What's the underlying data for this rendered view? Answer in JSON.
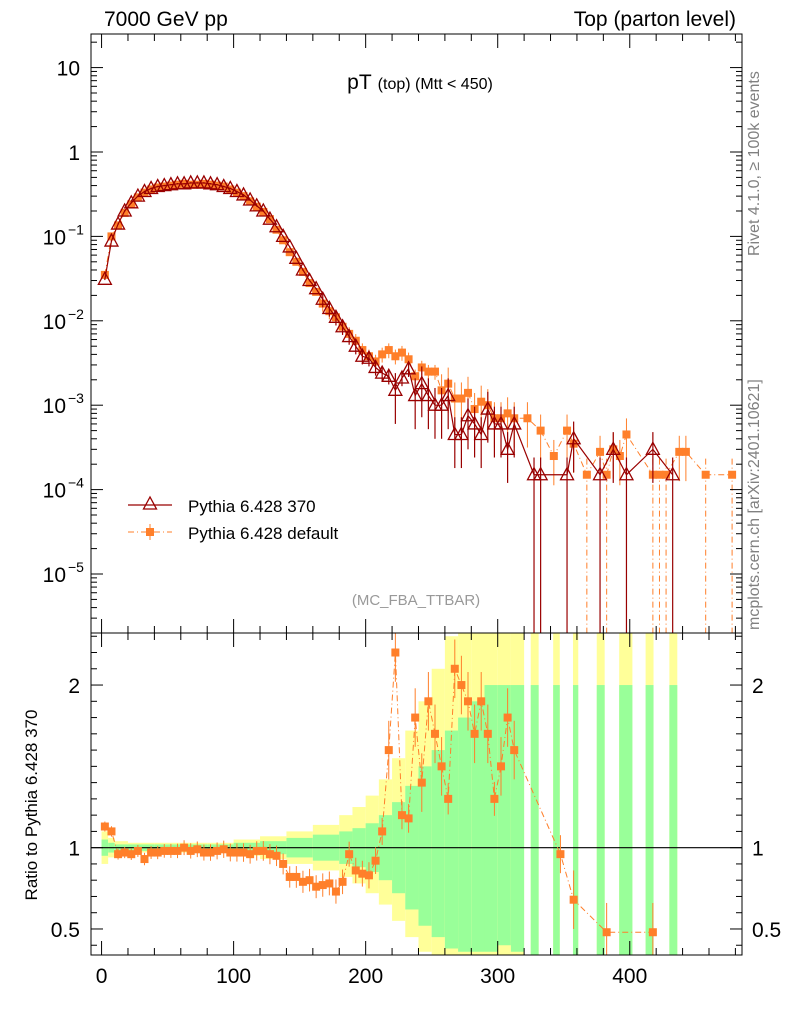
{
  "header": {
    "left": "7000 GeV pp",
    "right": "Top (parton level)"
  },
  "side_text": {
    "upper": "Rivet 4.1.0, ≥ 100k events",
    "lower": "mcplots.cern.ch [arXiv:2401.10621]"
  },
  "chart_data": {
    "type": "scatter",
    "title": "pT (top) (Mtt < 450)",
    "title_main": "pT",
    "title_sub": "(top) (Mtt < 450)",
    "analysis_label": "(MC_FBA_TTBAR)",
    "x_ticks": [
      "0",
      "100",
      "200",
      "300",
      "400"
    ],
    "x_range": [
      -8,
      485
    ],
    "y_scale": "log",
    "y_range": [
      2e-06,
      25
    ],
    "y_tick_labels": [
      {
        "value": 10,
        "label": "10"
      },
      {
        "value": 1,
        "label": "1"
      },
      {
        "value": 0.1,
        "label": "10",
        "exp": "−1"
      },
      {
        "value": 0.01,
        "label": "10",
        "exp": "−2"
      },
      {
        "value": 0.001,
        "label": "10",
        "exp": "−3"
      },
      {
        "value": 0.0001,
        "label": "10",
        "exp": "−4"
      },
      {
        "value": 1e-05,
        "label": "10",
        "exp": "−5"
      }
    ],
    "ratio_ylabel": "Ratio to Pythia 6.428 370",
    "ratio_range": [
      0.34,
      2.32
    ],
    "ratio_ticks": [
      {
        "value": 0.5,
        "label": "0.5"
      },
      {
        "value": 1,
        "label": "1"
      },
      {
        "value": 2,
        "label": "2"
      }
    ],
    "legend": [
      {
        "label": "Pythia 6.428 370",
        "color": "#990000",
        "marker": "triangle",
        "line": "solid"
      },
      {
        "label": "Pythia 6.428 default",
        "color": "#ff7f2a",
        "marker": "square",
        "line": "dashdot"
      }
    ],
    "series": [
      {
        "name": "Pythia 6.428 370",
        "color": "#990000",
        "x": [
          2.5,
          7.5,
          12.5,
          17.5,
          22.5,
          27.5,
          32.5,
          37.5,
          42.5,
          47.5,
          52.5,
          57.5,
          62.5,
          67.5,
          72.5,
          77.5,
          82.5,
          87.5,
          92.5,
          97.5,
          102.5,
          107.5,
          112.5,
          117.5,
          122.5,
          127.5,
          132.5,
          137.5,
          142.5,
          147.5,
          152.5,
          157.5,
          162.5,
          167.5,
          172.5,
          177.5,
          182.5,
          187.5,
          192.5,
          197.5,
          202.5,
          207.5,
          212.5,
          217.5,
          222.5,
          227.5,
          232.5,
          237.5,
          242.5,
          247.5,
          252.5,
          257.5,
          262.5,
          267.5,
          272.5,
          277.5,
          282.5,
          287.5,
          292.5,
          297.5,
          302.5,
          307.5,
          312.5,
          327.5,
          332.5,
          352.5,
          357.5,
          377.5,
          387.5,
          397.5,
          417.5,
          432.5
        ],
        "y": [
          0.031,
          0.088,
          0.14,
          0.2,
          0.25,
          0.3,
          0.34,
          0.37,
          0.39,
          0.4,
          0.41,
          0.42,
          0.42,
          0.43,
          0.43,
          0.43,
          0.42,
          0.41,
          0.39,
          0.37,
          0.34,
          0.31,
          0.27,
          0.23,
          0.2,
          0.16,
          0.13,
          0.1,
          0.075,
          0.055,
          0.04,
          0.03,
          0.024,
          0.018,
          0.014,
          0.011,
          0.0085,
          0.0065,
          0.005,
          0.0038,
          0.0036,
          0.0028,
          0.0024,
          0.0022,
          0.0015,
          0.0021,
          0.0027,
          0.0013,
          0.0018,
          0.0013,
          0.001,
          0.001,
          0.0013,
          0.00045,
          0.00045,
          0.00075,
          0.0006,
          0.00045,
          0.0009,
          0.0006,
          0.0006,
          0.0003,
          0.0006,
          0.00015,
          0.00015,
          0.00015,
          0.0004,
          0.00015,
          0.0003,
          0.00015,
          0.0003,
          0.00015
        ]
      },
      {
        "name": "Pythia 6.428 default",
        "color": "#ff7f2a",
        "x": [
          2.5,
          7.5,
          12.5,
          17.5,
          22.5,
          27.5,
          32.5,
          37.5,
          42.5,
          47.5,
          52.5,
          57.5,
          62.5,
          67.5,
          72.5,
          77.5,
          82.5,
          87.5,
          92.5,
          97.5,
          102.5,
          107.5,
          112.5,
          117.5,
          122.5,
          127.5,
          132.5,
          137.5,
          142.5,
          147.5,
          152.5,
          157.5,
          162.5,
          167.5,
          172.5,
          177.5,
          182.5,
          187.5,
          192.5,
          197.5,
          202.5,
          207.5,
          212.5,
          217.5,
          222.5,
          227.5,
          232.5,
          237.5,
          242.5,
          247.5,
          252.5,
          257.5,
          262.5,
          267.5,
          272.5,
          277.5,
          282.5,
          287.5,
          292.5,
          297.5,
          302.5,
          307.5,
          312.5,
          322.5,
          332.5,
          342.5,
          352.5,
          357.5,
          367.5,
          377.5,
          382.5,
          387.5,
          392.5,
          397.5,
          417.5,
          422.5,
          427.5,
          437.5,
          442.5,
          457.5,
          477.5
        ],
        "y": [
          0.035,
          0.1,
          0.135,
          0.19,
          0.24,
          0.29,
          0.33,
          0.36,
          0.38,
          0.39,
          0.4,
          0.41,
          0.42,
          0.41,
          0.41,
          0.42,
          0.41,
          0.4,
          0.39,
          0.36,
          0.33,
          0.3,
          0.26,
          0.225,
          0.195,
          0.16,
          0.12,
          0.09,
          0.065,
          0.05,
          0.038,
          0.028,
          0.022,
          0.016,
          0.013,
          0.011,
          0.0085,
          0.007,
          0.0058,
          0.0045,
          0.0038,
          0.0033,
          0.004,
          0.0045,
          0.0038,
          0.0042,
          0.0035,
          0.0022,
          0.0028,
          0.0025,
          0.0025,
          0.0015,
          0.0018,
          0.0012,
          0.0012,
          0.0014,
          0.0009,
          0.0011,
          0.001,
          0.0007,
          0.0007,
          0.0008,
          0.0007,
          0.0007,
          0.0005,
          0.00025,
          0.0005,
          0.00035,
          0.00015,
          0.00028,
          0.00015,
          0.0003,
          0.00025,
          0.00045,
          0.00015,
          0.00015,
          0.00015,
          0.00028,
          0.00028,
          0.00015,
          0.00015
        ]
      }
    ],
    "ratio_points_default": [
      [
        2.5,
        1.13
      ],
      [
        7.5,
        1.1
      ],
      [
        12.5,
        0.96
      ],
      [
        17.5,
        0.97
      ],
      [
        22.5,
        0.96
      ],
      [
        27.5,
        0.98
      ],
      [
        32.5,
        0.93
      ],
      [
        37.5,
        0.97
      ],
      [
        42.5,
        0.97
      ],
      [
        47.5,
        0.98
      ],
      [
        52.5,
        0.98
      ],
      [
        57.5,
        0.98
      ],
      [
        62.5,
        1.0
      ],
      [
        67.5,
        0.98
      ],
      [
        72.5,
        0.99
      ],
      [
        77.5,
        0.97
      ],
      [
        82.5,
        0.97
      ],
      [
        87.5,
        0.98
      ],
      [
        92.5,
        0.99
      ],
      [
        97.5,
        0.97
      ],
      [
        102.5,
        0.97
      ],
      [
        107.5,
        0.97
      ],
      [
        112.5,
        0.96
      ],
      [
        117.5,
        0.98
      ],
      [
        122.5,
        0.98
      ],
      [
        127.5,
        0.96
      ],
      [
        132.5,
        0.95
      ],
      [
        137.5,
        0.9
      ],
      [
        142.5,
        0.82
      ],
      [
        147.5,
        0.82
      ],
      [
        152.5,
        0.79
      ],
      [
        157.5,
        0.8
      ],
      [
        162.5,
        0.76
      ],
      [
        167.5,
        0.77
      ],
      [
        172.5,
        0.78
      ],
      [
        177.5,
        0.73
      ],
      [
        182.5,
        0.79
      ],
      [
        187.5,
        0.96
      ],
      [
        192.5,
        0.86
      ],
      [
        197.5,
        0.84
      ],
      [
        202.5,
        0.83
      ],
      [
        207.5,
        0.92
      ],
      [
        212.5,
        1.1
      ],
      [
        217.5,
        1.6
      ],
      [
        222.5,
        2.2
      ],
      [
        227.5,
        1.2
      ],
      [
        232.5,
        1.18
      ],
      [
        237.5,
        1.8
      ],
      [
        242.5,
        1.4
      ],
      [
        247.5,
        1.9
      ],
      [
        252.5,
        1.7
      ],
      [
        257.5,
        1.5
      ],
      [
        262.5,
        1.3
      ],
      [
        267.5,
        2.1
      ],
      [
        272.5,
        2.0
      ],
      [
        277.5,
        1.9
      ],
      [
        282.5,
        1.7
      ],
      [
        287.5,
        1.9
      ],
      [
        292.5,
        1.7
      ],
      [
        297.5,
        1.3
      ],
      [
        302.5,
        1.5
      ],
      [
        307.5,
        1.8
      ],
      [
        312.5,
        1.6
      ],
      [
        347.5,
        0.96
      ],
      [
        357.5,
        0.68
      ],
      [
        382.5,
        0.48
      ],
      [
        417.5,
        0.48
      ]
    ],
    "ratio_band_edges": {
      "x": [
        0,
        5,
        10,
        20,
        40,
        60,
        80,
        100,
        120,
        140,
        160,
        180,
        190,
        200,
        210,
        220,
        230,
        240,
        250,
        260,
        270,
        280,
        290,
        300,
        310,
        320
      ],
      "green_lo": [
        0.95,
        0.97,
        0.98,
        0.98,
        0.98,
        0.98,
        0.98,
        0.97,
        0.96,
        0.94,
        0.92,
        0.9,
        0.88,
        0.85,
        0.8,
        0.72,
        0.62,
        0.52,
        0.45,
        0.38,
        0.36,
        0.36,
        0.36,
        0.4,
        0.36
      ],
      "green_hi": [
        1.05,
        1.03,
        1.02,
        1.02,
        1.02,
        1.02,
        1.02,
        1.03,
        1.04,
        1.06,
        1.08,
        1.1,
        1.12,
        1.15,
        1.2,
        1.28,
        1.38,
        1.5,
        1.6,
        1.72,
        1.8,
        1.9,
        2.0,
        2.0,
        2.0
      ],
      "yellow_lo": [
        0.9,
        0.94,
        0.96,
        0.97,
        0.97,
        0.97,
        0.97,
        0.95,
        0.93,
        0.9,
        0.86,
        0.82,
        0.78,
        0.72,
        0.65,
        0.55,
        0.45,
        0.36,
        0.34,
        0.34,
        0.34,
        0.34,
        0.34,
        0.34,
        0.34
      ],
      "yellow_hi": [
        1.1,
        1.06,
        1.04,
        1.03,
        1.03,
        1.03,
        1.03,
        1.05,
        1.07,
        1.1,
        1.14,
        1.2,
        1.25,
        1.32,
        1.42,
        1.55,
        1.72,
        1.9,
        2.1,
        2.3,
        2.32,
        2.32,
        2.32,
        2.32,
        2.32
      ]
    },
    "ratio_band_spikes": [
      [
        325,
        331
      ],
      [
        342,
        347
      ],
      [
        357,
        361
      ],
      [
        375,
        381
      ],
      [
        392,
        402
      ],
      [
        412,
        418
      ],
      [
        430,
        436
      ]
    ]
  }
}
